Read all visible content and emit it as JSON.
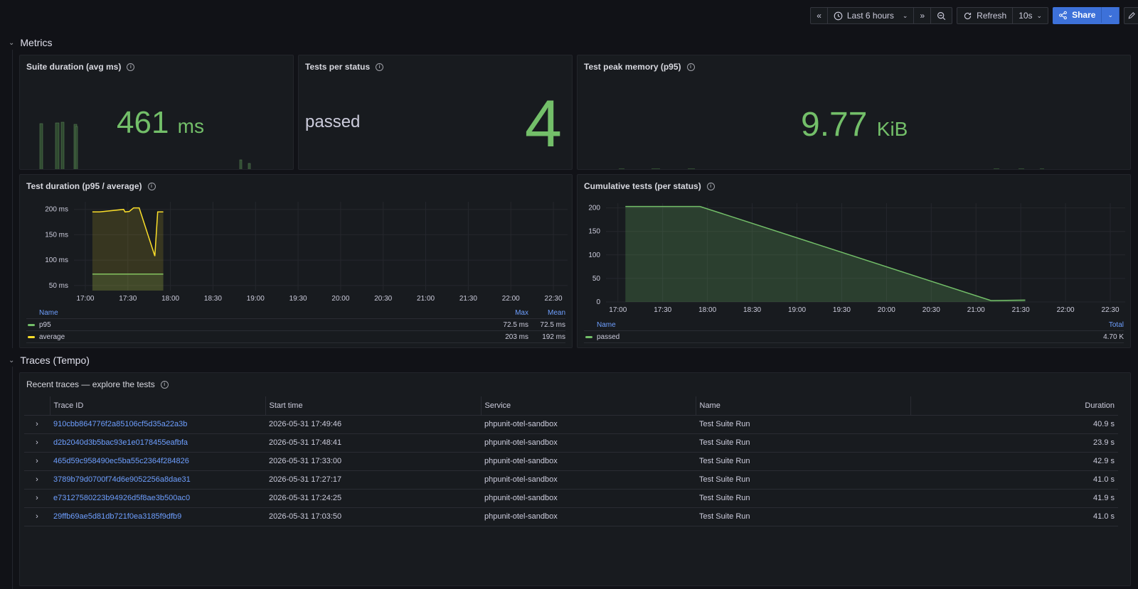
{
  "toolbar": {
    "time_range": "Last 6 hours",
    "refresh_label": "Refresh",
    "refresh_interval": "10s",
    "share_label": "Share"
  },
  "rows": {
    "metrics": "Metrics",
    "traces": "Traces (Tempo)"
  },
  "panels": {
    "suite_duration": {
      "title": "Suite duration (avg ms)",
      "value": "461",
      "unit": "ms"
    },
    "tests_per_status": {
      "title": "Tests per status",
      "label": "passed",
      "value": "4"
    },
    "peak_memory": {
      "title": "Test peak memory (p95)",
      "value": "9.77",
      "unit": "KiB"
    },
    "test_duration": {
      "title": "Test duration (p95 / average)",
      "legend_headers": {
        "name": "Name",
        "max": "Max",
        "mean": "Mean"
      },
      "legend": [
        {
          "name": "p95",
          "max": "72.5 ms",
          "mean": "72.5 ms",
          "color": "#73bf69"
        },
        {
          "name": "average",
          "max": "203 ms",
          "mean": "192 ms",
          "color": "#fade2a"
        }
      ]
    },
    "cumulative_tests": {
      "title": "Cumulative tests (per status)",
      "legend_headers": {
        "name": "Name",
        "total": "Total"
      },
      "legend": [
        {
          "name": "passed",
          "total": "4.70 K",
          "color": "#73bf69"
        }
      ]
    },
    "traces": {
      "title": "Recent traces — explore the tests",
      "headers": [
        "Trace ID",
        "Start time",
        "Service",
        "Name",
        "Duration"
      ],
      "rows": [
        {
          "id": "910cbb864776f2a85106cf5d35a22a3b",
          "start": "2026-05-31 17:49:46",
          "service": "phpunit-otel-sandbox",
          "name": "Test Suite Run",
          "duration": "40.9 s"
        },
        {
          "id": "d2b2040d3b5bac93e1e0178455eafbfa",
          "start": "2026-05-31 17:48:41",
          "service": "phpunit-otel-sandbox",
          "name": "Test Suite Run",
          "duration": "23.9 s"
        },
        {
          "id": "465d59c958490ec5ba55c2364f284826",
          "start": "2026-05-31 17:33:00",
          "service": "phpunit-otel-sandbox",
          "name": "Test Suite Run",
          "duration": "42.9 s"
        },
        {
          "id": "3789b79d0700f74d6e9052256a8dae31",
          "start": "2026-05-31 17:27:17",
          "service": "phpunit-otel-sandbox",
          "name": "Test Suite Run",
          "duration": "41.0 s"
        },
        {
          "id": "e73127580223b94926d5f8ae3b500ac0",
          "start": "2026-05-31 17:24:25",
          "service": "phpunit-otel-sandbox",
          "name": "Test Suite Run",
          "duration": "41.9 s"
        },
        {
          "id": "29ffb69ae5d81db721f0ea3185f9dfb9",
          "start": "2026-05-31 17:03:50",
          "service": "phpunit-otel-sandbox",
          "name": "Test Suite Run",
          "duration": "41.0 s"
        }
      ]
    }
  },
  "chart_data": [
    {
      "type": "line",
      "x_ticks": [
        "17:00",
        "17:30",
        "18:00",
        "18:30",
        "19:00",
        "19:30",
        "20:00",
        "20:30",
        "21:00",
        "21:30",
        "22:00",
        "22:30"
      ],
      "y_ticks": [
        "50 ms",
        "100 ms",
        "150 ms",
        "200 ms"
      ],
      "ylim": [
        40,
        215
      ],
      "series": [
        {
          "name": "p95",
          "color": "#73bf69",
          "x": [
            "17:05",
            "17:55"
          ],
          "y": [
            72.5,
            72.5
          ]
        },
        {
          "name": "average",
          "color": "#fade2a",
          "x": [
            "17:05",
            "17:10",
            "17:27",
            "17:28",
            "17:31",
            "17:34",
            "17:38",
            "17:49",
            "17:51",
            "17:55"
          ],
          "y": [
            195,
            195,
            200,
            195,
            196,
            203,
            203,
            108,
            195,
            195
          ]
        }
      ]
    },
    {
      "type": "area",
      "x_ticks": [
        "17:00",
        "17:30",
        "18:00",
        "18:30",
        "19:00",
        "19:30",
        "20:00",
        "20:30",
        "21:00",
        "21:30",
        "22:00",
        "22:30"
      ],
      "y_ticks": [
        "0",
        "50",
        "100",
        "150",
        "200"
      ],
      "ylim": [
        0,
        210
      ],
      "series": [
        {
          "name": "passed",
          "color": "#73bf69",
          "x": [
            "17:05",
            "17:55",
            "21:10",
            "21:33"
          ],
          "y": [
            203,
            203,
            3,
            4
          ]
        }
      ]
    }
  ]
}
